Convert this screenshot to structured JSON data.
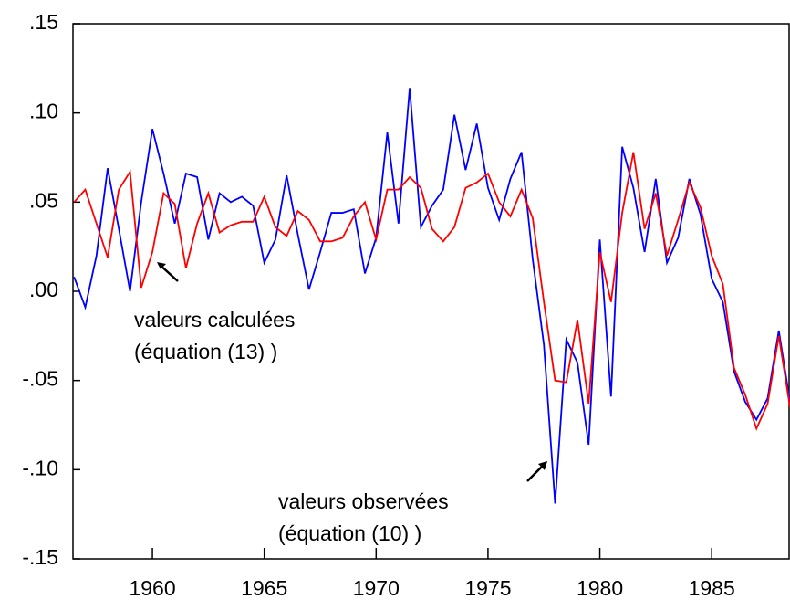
{
  "chart_data": {
    "type": "line",
    "x": [
      1956.5,
      1957,
      1957.5,
      1958,
      1958.5,
      1959,
      1959.5,
      1960,
      1960.5,
      1961,
      1961.5,
      1962,
      1962.5,
      1963,
      1963.5,
      1964,
      1964.5,
      1965,
      1965.5,
      1966,
      1966.5,
      1967,
      1967.5,
      1968,
      1968.5,
      1969,
      1969.5,
      1970,
      1970.5,
      1971,
      1971.5,
      1972,
      1972.5,
      1973,
      1973.5,
      1974,
      1974.5,
      1975,
      1975.5,
      1976,
      1976.5,
      1977,
      1977.5,
      1978,
      1978.5,
      1979,
      1979.5,
      1980,
      1980.5,
      1981,
      1981.5,
      1982,
      1982.5,
      1983,
      1983.5,
      1984,
      1984.5,
      1985,
      1985.5,
      1986,
      1986.5,
      1987,
      1987.5,
      1988,
      1988.5
    ],
    "series": [
      {
        "name": "valeurs observées",
        "color": "#0000ff",
        "values": [
          0.008,
          -0.009,
          0.02,
          0.069,
          0.035,
          0.0,
          0.05,
          0.091,
          0.066,
          0.038,
          0.066,
          0.064,
          0.029,
          0.055,
          0.05,
          0.053,
          0.048,
          0.016,
          0.029,
          0.065,
          0.032,
          0.001,
          0.022,
          0.044,
          0.044,
          0.046,
          0.01,
          0.03,
          0.089,
          0.038,
          0.114,
          0.036,
          0.048,
          0.057,
          0.099,
          0.068,
          0.094,
          0.058,
          0.04,
          0.063,
          0.078,
          0.018,
          -0.03,
          -0.119,
          -0.027,
          -0.04,
          -0.086,
          0.029,
          -0.059,
          0.081,
          0.058,
          0.022,
          0.063,
          0.016,
          0.03,
          0.063,
          0.043,
          0.007,
          -0.006,
          -0.045,
          -0.062,
          -0.072,
          -0.06,
          -0.022,
          -0.062
        ]
      },
      {
        "name": "valeurs calculées",
        "color": "#ff0000",
        "values": [
          0.05,
          0.057,
          0.038,
          0.019,
          0.057,
          0.067,
          0.002,
          0.022,
          0.055,
          0.049,
          0.013,
          0.038,
          0.055,
          0.033,
          0.037,
          0.039,
          0.039,
          0.053,
          0.036,
          0.031,
          0.045,
          0.04,
          0.028,
          0.028,
          0.03,
          0.042,
          0.05,
          0.029,
          0.057,
          0.057,
          0.064,
          0.058,
          0.035,
          0.028,
          0.036,
          0.058,
          0.061,
          0.066,
          0.05,
          0.042,
          0.057,
          0.041,
          -0.006,
          -0.05,
          -0.051,
          -0.016,
          -0.063,
          0.022,
          -0.006,
          0.044,
          0.078,
          0.035,
          0.055,
          0.02,
          0.04,
          0.061,
          0.047,
          0.02,
          0.004,
          -0.043,
          -0.058,
          -0.077,
          -0.063,
          -0.025,
          -0.065
        ]
      }
    ],
    "annotations": [
      {
        "lines": [
          "valeurs calculées",
          "(équation (13) )"
        ]
      },
      {
        "lines": [
          "valeurs observées",
          "(équation (10) )"
        ]
      }
    ],
    "xlim": [
      1956.45,
      1988.5
    ],
    "xticks": [
      1960,
      1965,
      1970,
      1975,
      1980,
      1985
    ],
    "ylim": [
      -0.15,
      0.15
    ],
    "yticks": [
      {
        "value": -0.15,
        "label": "-.15"
      },
      {
        "value": -0.1,
        "label": "-.10"
      },
      {
        "value": -0.05,
        "label": "-.05"
      },
      {
        "value": 0.0,
        "label": ".00"
      },
      {
        "value": 0.05,
        "label": ".05"
      },
      {
        "value": 0.1,
        "label": ".10"
      },
      {
        "value": 0.15,
        "label": ".15"
      }
    ]
  }
}
